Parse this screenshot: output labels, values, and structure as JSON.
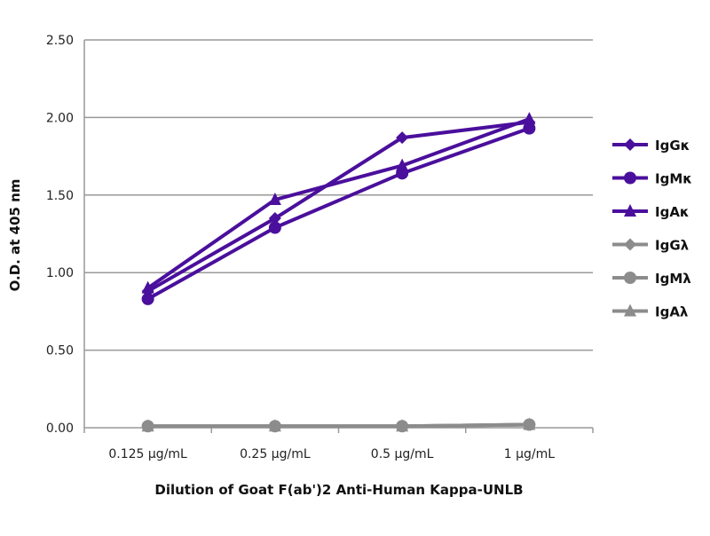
{
  "chart_data": {
    "type": "line",
    "title": "",
    "xlabel": "Dilution of Goat F(ab')2 Anti-Human Kappa-UNLB",
    "ylabel": "O.D. at 405 nm",
    "categories": [
      "0.125 µg/mL",
      "0.25 µg/mL",
      "0.5 µg/mL",
      "1 µg/mL"
    ],
    "ylim": [
      0,
      2.5
    ],
    "yticks": [
      "0.00",
      "0.50",
      "1.00",
      "1.50",
      "2.00",
      "2.50"
    ],
    "grid": "horizontal",
    "legend_position": "right",
    "series": [
      {
        "name": "IgGκ",
        "marker": "diamond",
        "color": "#4a0f9c",
        "values": [
          0.88,
          1.35,
          1.87,
          1.97
        ]
      },
      {
        "name": "IgMκ",
        "marker": "circle",
        "color": "#4a0f9c",
        "values": [
          0.83,
          1.29,
          1.64,
          1.93
        ]
      },
      {
        "name": "IgAκ",
        "marker": "triangle",
        "color": "#4a0f9c",
        "values": [
          0.9,
          1.47,
          1.69,
          1.99
        ]
      },
      {
        "name": "IgGλ",
        "marker": "diamond",
        "color": "#8c8c8c",
        "values": [
          0.01,
          0.01,
          0.01,
          0.02
        ]
      },
      {
        "name": "IgMλ",
        "marker": "circle",
        "color": "#8c8c8c",
        "values": [
          0.01,
          0.01,
          0.01,
          0.02
        ]
      },
      {
        "name": "IgAλ",
        "marker": "triangle",
        "color": "#8c8c8c",
        "values": [
          0.01,
          0.01,
          0.01,
          0.02
        ]
      }
    ]
  }
}
